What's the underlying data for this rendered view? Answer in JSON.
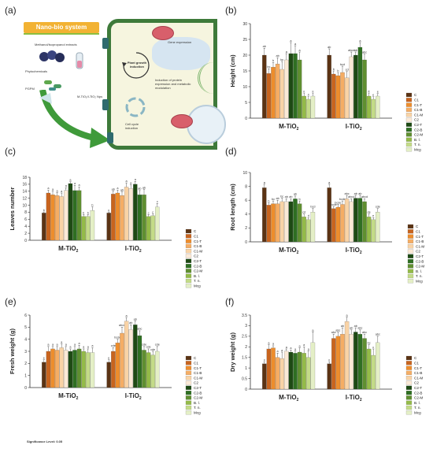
{
  "panel_a": {
    "letter": "(a)",
    "title": "Nano-bio system",
    "labels": {
      "extracts": "Methanol/Isopropanol extracts",
      "phytochemicals": "Phytochemicals",
      "pgpm": "PGPM",
      "nps": "M-TiO₂/I-TiO₂ Nps",
      "plant_growth": "Plant growth induction",
      "gene": "Gene expression",
      "protein": "Induction of protein expression and metabolic modulation",
      "cycle": "Cell cycle induction"
    }
  },
  "legend": [
    "C",
    "C1",
    "C1-T",
    "C1-B",
    "C1-M",
    "C2",
    "C2-T",
    "C2-B",
    "C2-M",
    "B. l.",
    "T. n.",
    "Mcg"
  ],
  "colors": [
    "#5b3314",
    "#c8641e",
    "#ed8d2c",
    "#f5ad64",
    "#f9d3a6",
    "#fbe9d6",
    "#1e4a14",
    "#2f6f22",
    "#5f8f30",
    "#94bb48",
    "#c3db87",
    "#e4efc6"
  ],
  "significance": "Significance Level: 0.05",
  "chart_data": [
    {
      "letter": "(b)",
      "type": "bar",
      "ylabel": "Height (cm)",
      "ylim": [
        0,
        30
      ],
      "yticks": [
        0,
        5,
        10,
        15,
        20,
        25,
        30
      ],
      "group_labels": [
        [
          "M-TiO",
          "2"
        ],
        [
          "I-TiO",
          "2"
        ]
      ],
      "series": [
        {
          "name": "M-TiO2",
          "values": [
            20,
            14.2,
            16.2,
            17.2,
            15.5,
            18.5,
            20.5,
            20.5,
            18.5,
            7,
            6,
            7
          ],
          "errors": [
            2.2,
            1.5,
            1.5,
            2,
            2.5,
            2,
            3.5,
            2.5,
            2.5,
            1,
            1,
            1
          ],
          "letters": [
            "ab",
            "bc",
            "b",
            "ab",
            "bc",
            "a",
            "a",
            "a",
            "a",
            "c",
            "c",
            "c"
          ]
        },
        {
          "name": "I-TiO2",
          "values": [
            20,
            14,
            13.5,
            14.5,
            12.8,
            19.5,
            20,
            22.5,
            18.5,
            7,
            6,
            7
          ],
          "errors": [
            2,
            1,
            1,
            2,
            2,
            1.5,
            1,
            1.5,
            1.8,
            1,
            0.8,
            0.8
          ],
          "letters": [
            "ab",
            "b",
            "b",
            "bcd",
            "cd",
            "abcd",
            "ab",
            "a",
            "abc",
            "e",
            "e",
            "e"
          ]
        }
      ]
    },
    {
      "letter": "(c)",
      "type": "bar",
      "ylabel": "Leaves number",
      "ylim": [
        0,
        18
      ],
      "yticks": [
        0,
        2,
        4,
        6,
        8,
        10,
        12,
        14,
        16,
        18
      ],
      "group_labels": [
        [
          "M-TiO",
          "2"
        ],
        [
          "I-TiO",
          "2"
        ]
      ],
      "series": [
        {
          "name": "M-TiO2",
          "values": [
            7.8,
            13.5,
            13,
            12.8,
            12.5,
            14.2,
            16.2,
            14.2,
            14.2,
            6.8,
            6.8,
            8.5
          ],
          "errors": [
            0.3,
            0.8,
            1,
            0.8,
            1,
            0.8,
            0.5,
            1.5,
            1,
            0.5,
            0.5,
            1
          ],
          "letters": [
            "b",
            "a",
            "a",
            "a",
            "a",
            "a",
            "a",
            "a",
            "a",
            "b",
            "b",
            "b"
          ]
        },
        {
          "name": "I-TiO2",
          "values": [
            7.8,
            13.2,
            13.5,
            12.8,
            15.2,
            14.8,
            16,
            13,
            13,
            6.8,
            7,
            9.5
          ],
          "errors": [
            0.3,
            0.8,
            0.8,
            1,
            1.2,
            1,
            0.8,
            1.2,
            1.5,
            0.5,
            0.5,
            1
          ],
          "letters": [
            "c",
            "ab",
            "a",
            "ab",
            "a",
            "a",
            "a",
            "ab",
            "ab",
            "c",
            "c",
            "c"
          ]
        }
      ]
    },
    {
      "letter": "(d)",
      "type": "bar",
      "ylabel": "Root length (cm)",
      "ylim": [
        0,
        10
      ],
      "yticks": [
        0,
        2,
        4,
        6,
        8,
        10
      ],
      "group_labels": [
        [
          "M-TiO",
          "2"
        ],
        [
          "I-TiO",
          "2"
        ]
      ],
      "series": [
        {
          "name": "M-TiO2",
          "values": [
            7.8,
            5.3,
            5.5,
            5.5,
            5.8,
            5.8,
            5.8,
            6.2,
            5.5,
            3.6,
            3.2,
            4.3
          ],
          "errors": [
            0.5,
            0.3,
            0.4,
            0.5,
            0.5,
            0.4,
            0.4,
            0.4,
            0.4,
            0.4,
            0.3,
            0.5
          ],
          "letters": [
            "a",
            "b",
            "bc",
            "ab",
            "bc",
            "ab",
            "ab",
            "ab",
            "b",
            "cd",
            "d",
            "bcd"
          ]
        },
        {
          "name": "I-TiO2",
          "values": [
            7.8,
            4.8,
            5,
            5.4,
            6.2,
            5.8,
            6.3,
            6.3,
            5.8,
            3.6,
            3.2,
            4.3
          ],
          "errors": [
            0.5,
            0.3,
            0.4,
            0.5,
            0.5,
            0.4,
            0.4,
            0.4,
            0.4,
            0.4,
            0.3,
            0.5
          ],
          "letters": [
            "a",
            "bcde",
            "bcde",
            "bcde",
            "abc",
            "abcd",
            "ab",
            "ab",
            "abcd",
            "de",
            "e",
            "cde"
          ]
        }
      ]
    },
    {
      "letter": "(e)",
      "type": "bar",
      "ylabel": "Fresh weight (g)",
      "ylim": [
        0,
        6
      ],
      "yticks": [
        0,
        1,
        2,
        3,
        4,
        5,
        6
      ],
      "group_labels": [
        [
          "M-TiO",
          "2"
        ],
        [
          "I-TiO",
          "2"
        ]
      ],
      "series": [
        {
          "name": "M-TiO2",
          "values": [
            2.1,
            3,
            3.2,
            3.1,
            3.3,
            3.1,
            3,
            3.1,
            3.2,
            3,
            2.9,
            2.9
          ],
          "errors": [
            0.2,
            0.4,
            0.2,
            0.3,
            0.3,
            0.3,
            0.2,
            0.3,
            0.3,
            0.2,
            0.3,
            0.4
          ],
          "letters": [
            "e",
            "a",
            "a",
            "a",
            "a",
            "a",
            "a",
            "a",
            "a",
            "a",
            "a",
            "a"
          ]
        },
        {
          "name": "I-TiO2",
          "values": [
            2.1,
            3,
            3.7,
            4.5,
            5.5,
            4.8,
            5.2,
            4.3,
            3.1,
            2.9,
            2.7,
            3
          ],
          "errors": [
            0.2,
            0.3,
            0.3,
            0.5,
            0.3,
            0.4,
            0.3,
            0.4,
            0.3,
            0.3,
            0.3,
            0.4
          ],
          "letters": [
            "e",
            "cde",
            "bcde",
            "abcd",
            "a",
            "ab",
            "ab",
            "abc",
            "cde",
            "cde",
            "cde",
            "cde"
          ]
        }
      ]
    },
    {
      "letter": "(f)",
      "type": "bar",
      "ylabel": "Dry weight (g)",
      "ylim": [
        0,
        3.5
      ],
      "yticks": [
        0,
        0.5,
        1.0,
        1.5,
        2.0,
        2.5,
        3.0,
        3.5
      ],
      "group_labels": [
        [
          "M-TiO",
          "2"
        ],
        [
          "I-TiO",
          "2"
        ]
      ],
      "series": [
        {
          "name": "M-TiO2",
          "values": [
            1.2,
            1.9,
            1.95,
            1.5,
            1.45,
            1.8,
            1.75,
            1.7,
            1.75,
            1.7,
            1.5,
            2.2
          ],
          "errors": [
            0.1,
            0.2,
            0.1,
            0.2,
            0.3,
            0.1,
            0.1,
            0.1,
            0.2,
            0.3,
            0.3,
            0.5
          ],
          "letters": [
            "c",
            "a",
            "a",
            "a",
            "a",
            "a",
            "a",
            "a",
            "a",
            "a",
            "a",
            "a"
          ]
        },
        {
          "name": "I-TiO2",
          "values": [
            1.2,
            2.4,
            2.5,
            2.6,
            3.2,
            2.6,
            2.7,
            2.6,
            2.4,
            1.9,
            1.6,
            2.2
          ],
          "errors": [
            0.1,
            0.2,
            0.2,
            0.3,
            0.2,
            0.2,
            0.2,
            0.2,
            0.2,
            0.2,
            0.3,
            0.3
          ],
          "letters": [
            "c",
            "abc",
            "abc",
            "ab",
            "a",
            "ab",
            "ab",
            "abc",
            "abc",
            "bc",
            "c",
            "abc"
          ]
        }
      ]
    }
  ]
}
